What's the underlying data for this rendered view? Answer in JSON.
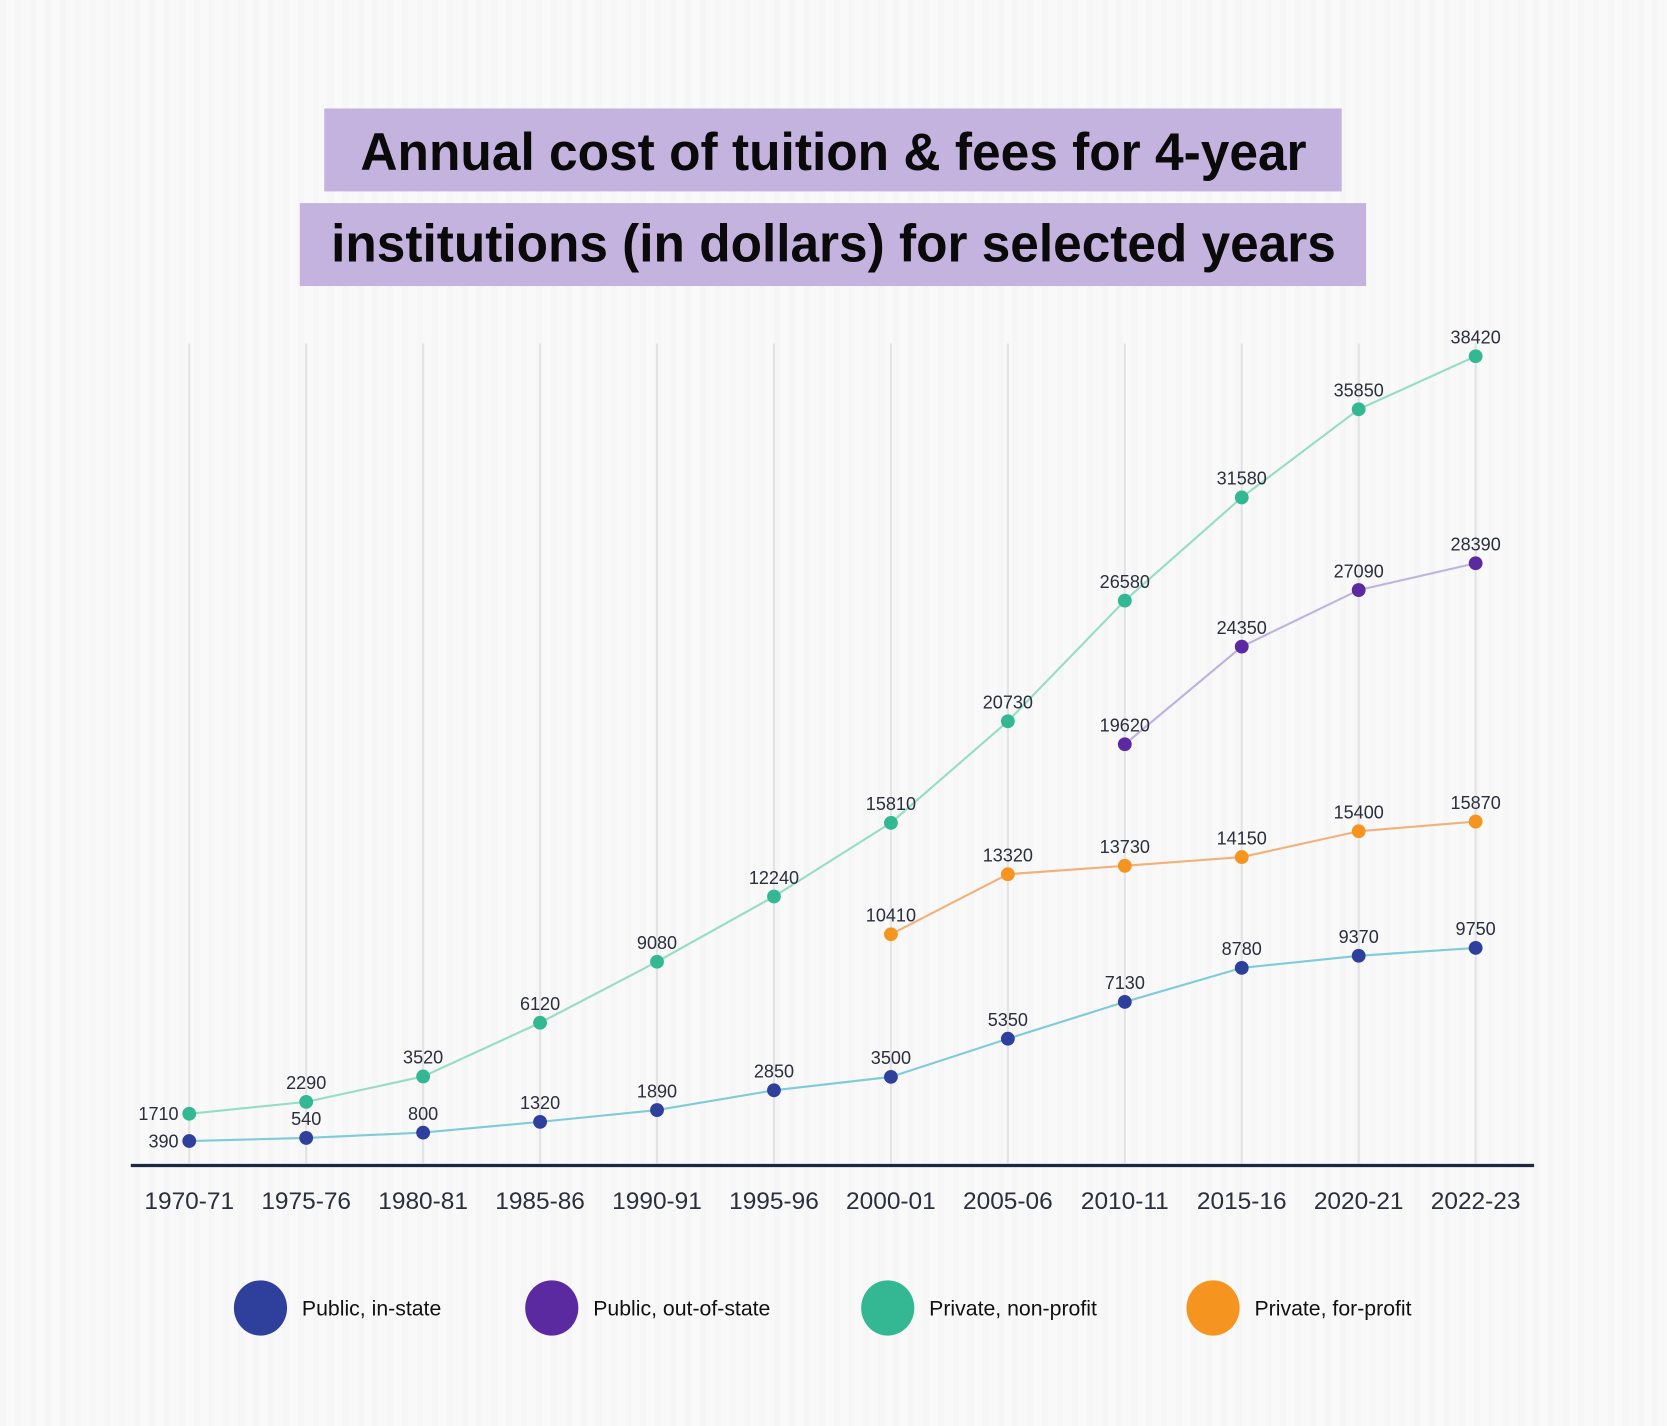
{
  "title": {
    "line1": "Annual cost of tuition & fees for 4-year",
    "line2": "institutions (in dollars) for selected years",
    "highlight_color": "#c3b3de"
  },
  "colors": {
    "public_in_state": "#2e3f9c",
    "public_in_state_line": "#7fcbd8",
    "public_out_of_state": "#5b2aa0",
    "public_out_of_state_line": "#bfb3dd",
    "private_nonprofit": "#33b893",
    "private_nonprofit_line": "#96ddc6",
    "private_for_profit": "#f5951f",
    "private_for_profit_line": "#f0b27a",
    "axis": "#1c2740",
    "grid": "#e3e3e6"
  },
  "legend": [
    {
      "label": "Public, in-state",
      "color": "#2e3f9c"
    },
    {
      "label": "Public, out-of-state",
      "color": "#5b2aa0"
    },
    {
      "label": "Private, non-profit",
      "color": "#33b893"
    },
    {
      "label": "Private, for-profit",
      "color": "#f5951f"
    }
  ],
  "chart_data": {
    "type": "line",
    "title": "Annual cost of tuition & fees for 4-year institutions (in dollars) for selected years",
    "xlabel": "",
    "ylabel": "",
    "grid": "vertical lines only",
    "legend_position": "bottom",
    "ylim": [
      0,
      40000
    ],
    "categories": [
      "1970-71",
      "1975-76",
      "1980-81",
      "1985-86",
      "1990-91",
      "1995-96",
      "2000-01",
      "2005-06",
      "2010-11",
      "2015-16",
      "2020-21",
      "2022-23"
    ],
    "series": [
      {
        "name": "Public, in-state",
        "values": [
          390,
          540,
          800,
          1320,
          1890,
          2850,
          3500,
          5350,
          7130,
          8780,
          9370,
          9750
        ]
      },
      {
        "name": "Public, out-of-state",
        "values": [
          null,
          null,
          null,
          null,
          null,
          null,
          null,
          null,
          19620,
          24350,
          27090,
          28390
        ]
      },
      {
        "name": "Private, non-profit",
        "values": [
          1710,
          2290,
          3520,
          6120,
          9080,
          12240,
          15810,
          20730,
          26580,
          31580,
          35850,
          38420
        ]
      },
      {
        "name": "Private, for-profit",
        "values": [
          null,
          null,
          null,
          null,
          null,
          null,
          10410,
          13320,
          13730,
          14150,
          15400,
          15870
        ]
      }
    ]
  }
}
